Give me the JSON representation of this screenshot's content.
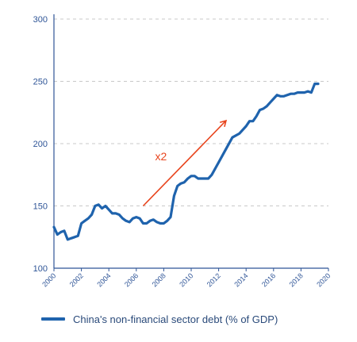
{
  "colors": {
    "line": "#1f63ad",
    "annotation": "#e8451e",
    "axis": "#2f5597",
    "grid": "#c8c8c8"
  },
  "chart_data": {
    "type": "line",
    "title": "",
    "xlabel": "",
    "ylabel": "",
    "xlim": [
      2000,
      2020
    ],
    "ylim": [
      100,
      300
    ],
    "yticks": [
      100,
      150,
      200,
      250,
      300
    ],
    "xticks": [
      2000,
      2002,
      2004,
      2006,
      2008,
      2010,
      2012,
      2014,
      2016,
      2018,
      2020
    ],
    "grid": "horizontal dashed",
    "legend_position": "bottom",
    "series": [
      {
        "name": "China's non-financial sector debt (% of GDP)",
        "x": [
          2000.0,
          2000.25,
          2000.5,
          2000.75,
          2001.0,
          2001.25,
          2001.5,
          2001.75,
          2002.0,
          2002.25,
          2002.5,
          2002.75,
          2003.0,
          2003.25,
          2003.5,
          2003.75,
          2004.0,
          2004.25,
          2004.5,
          2004.75,
          2005.0,
          2005.25,
          2005.5,
          2005.75,
          2006.0,
          2006.25,
          2006.5,
          2006.75,
          2007.0,
          2007.25,
          2007.5,
          2007.75,
          2008.0,
          2008.25,
          2008.5,
          2008.75,
          2009.0,
          2009.25,
          2009.5,
          2009.75,
          2010.0,
          2010.25,
          2010.5,
          2010.75,
          2011.0,
          2011.25,
          2011.5,
          2011.75,
          2012.0,
          2012.5,
          2013.0,
          2013.5,
          2014.0,
          2014.25,
          2014.5,
          2014.75,
          2015.0,
          2015.25,
          2015.5,
          2015.75,
          2016.0,
          2016.25,
          2016.5,
          2016.75,
          2017.0,
          2017.25,
          2017.5,
          2017.75,
          2018.0,
          2018.25,
          2018.5,
          2018.75,
          2019.0,
          2019.25
        ],
        "y": [
          133,
          127,
          129,
          130,
          123,
          124,
          125,
          126,
          136,
          138,
          140,
          143,
          150,
          151,
          148,
          150,
          147,
          144,
          144,
          143,
          140,
          138,
          137,
          140,
          141,
          140,
          136,
          136,
          138,
          139,
          137,
          136,
          136,
          138,
          141,
          158,
          166,
          168,
          169,
          172,
          174,
          174,
          172,
          172,
          172,
          172,
          175,
          180,
          185,
          195,
          205,
          208,
          214,
          218,
          218,
          222,
          227,
          228,
          230,
          233,
          236,
          239,
          238,
          238,
          239,
          240,
          240,
          241,
          241,
          241,
          242,
          241,
          248,
          248
        ]
      }
    ],
    "annotations": [
      {
        "text": "x2",
        "from": [
          2006.5,
          150
        ],
        "to": [
          2012.5,
          218
        ]
      }
    ]
  },
  "legend": {
    "label": "China's non-financial sector debt (% of GDP)"
  }
}
